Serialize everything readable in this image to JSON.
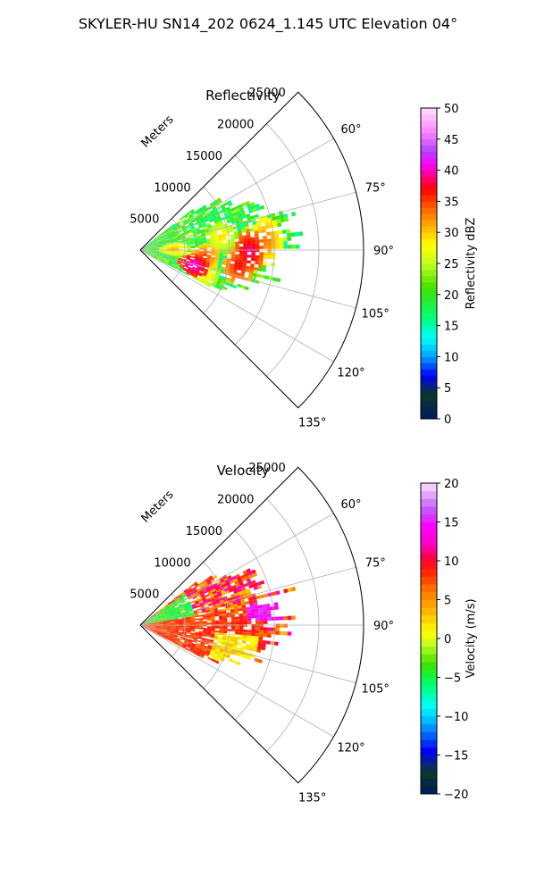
{
  "title": "SKYLER-HU  SN14_202  0624_1.145 UTC Elevation 04°",
  "range_axis_label": "Meters",
  "chart_data": [
    {
      "type": "polar-sector",
      "title": "Reflectivity",
      "range_ticks": [
        5000,
        10000,
        15000,
        20000,
        25000
      ],
      "range_tick_labels": [
        "5000",
        "10000",
        "15000",
        "20000",
        "25000"
      ],
      "range_max": 25000,
      "azimuth_min_deg": 45,
      "azimuth_max_deg": 135,
      "azimuth_ticks": [
        60,
        75,
        90,
        105,
        120,
        135
      ],
      "azimuth_tick_labels": [
        "60°",
        "75°",
        "90°",
        "105°",
        "120°",
        "135°"
      ],
      "grid": true,
      "colorbar": {
        "label": "Reflectivity dBZ",
        "min": 0,
        "max": 50,
        "ticks": [
          0,
          5,
          10,
          15,
          20,
          25,
          30,
          35,
          40,
          45,
          50
        ],
        "tick_labels": [
          "0",
          "5",
          "10",
          "15",
          "20",
          "25",
          "30",
          "35",
          "40",
          "45",
          "50"
        ]
      },
      "echo_extent": {
        "azimuth_deg": [
          52,
          118
        ],
        "range_m": [
          0,
          16000
        ]
      },
      "dominant_value": 20,
      "cells": [
        {
          "az": 90,
          "r": 12000,
          "value": 40
        },
        {
          "az": 98,
          "r": 11000,
          "value": 38
        },
        {
          "az": 95,
          "r": 7000,
          "value": 36
        },
        {
          "az": 105,
          "r": 6000,
          "value": 42
        },
        {
          "az": 85,
          "r": 14000,
          "value": 34
        },
        {
          "az": 80,
          "r": 9000,
          "value": 30
        },
        {
          "az": 88,
          "r": 3500,
          "value": 32
        },
        {
          "az": 110,
          "r": 7500,
          "value": 30
        }
      ]
    },
    {
      "type": "polar-sector",
      "title": "Velocity",
      "range_ticks": [
        5000,
        10000,
        15000,
        20000,
        25000
      ],
      "range_tick_labels": [
        "5000",
        "10000",
        "15000",
        "20000",
        "25000"
      ],
      "range_max": 25000,
      "azimuth_min_deg": 45,
      "azimuth_max_deg": 135,
      "azimuth_ticks": [
        60,
        75,
        90,
        105,
        120,
        135
      ],
      "azimuth_tick_labels": [
        "60°",
        "75°",
        "90°",
        "105°",
        "120°",
        "135°"
      ],
      "grid": true,
      "colorbar": {
        "label": "Velocity (m/s)",
        "min": -20,
        "max": 20,
        "ticks": [
          -20,
          -15,
          -10,
          -5,
          0,
          5,
          10,
          15,
          20
        ],
        "tick_labels": [
          "−20",
          "−15",
          "−10",
          "−5",
          "0",
          "5",
          "10",
          "15",
          "20"
        ]
      },
      "echo_extent": {
        "azimuth_deg": [
          52,
          118
        ],
        "range_m": [
          0,
          16000
        ]
      },
      "dominant_value": 8,
      "regions": [
        {
          "azimuth_deg": [
            55,
            80
          ],
          "range_m": [
            0,
            6000
          ],
          "value": -4
        },
        {
          "azimuth_deg": [
            80,
            118
          ],
          "range_m": [
            0,
            14000
          ],
          "value": 8
        },
        {
          "azimuth_deg": [
            95,
            115
          ],
          "range_m": [
            8000,
            13000
          ],
          "value": 2
        },
        {
          "azimuth_deg": [
            78,
            88
          ],
          "range_m": [
            12000,
            16000
          ],
          "value": 14
        }
      ]
    }
  ]
}
